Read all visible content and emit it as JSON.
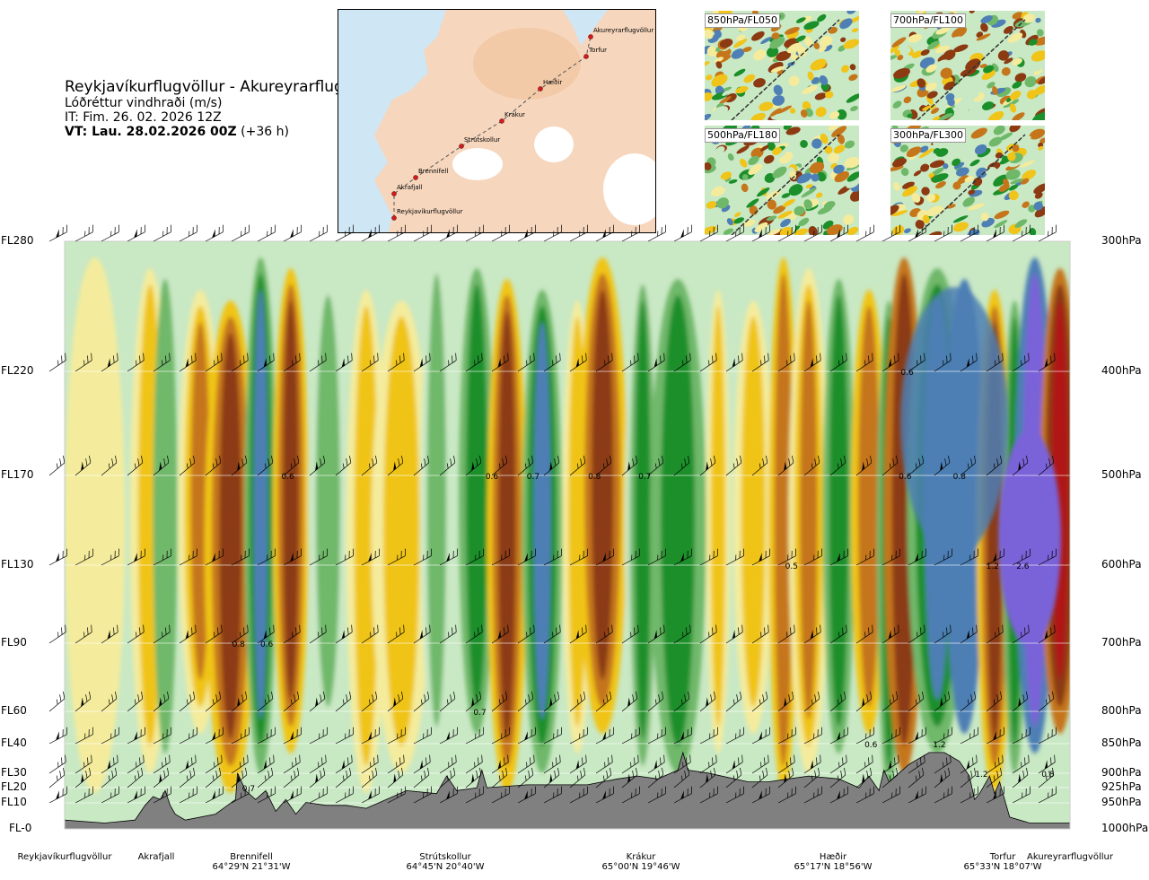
{
  "header": {
    "route_title": "Reykjavíkurflugvöllur - Akureyrarflugvöllur",
    "variable": "Lóðréttur vindhraði (m/s)",
    "issue_time": "IT: Fim. 26. 02. 2026 12Z",
    "valid_prefix": "VT: Lau. 28.02.2026 00Z",
    "valid_suffix": "(+36 h)"
  },
  "route_map": {
    "waypoints": [
      "Akureyrarflugvöllur",
      "Torfur",
      "Hæðir",
      "Krákur",
      "Strútskollur",
      "Brennifell",
      "Akrafjall",
      "Reykjavíkurflugvöllur"
    ],
    "route_color": "#555555",
    "marker_color": "#d7191c"
  },
  "level_maps": [
    {
      "label": "850hPa/FL050"
    },
    {
      "label": "700hPa/FL100"
    },
    {
      "label": "500hPa/FL180"
    },
    {
      "label": "300hPa/FL300"
    }
  ],
  "chart_data": {
    "type": "heatmap",
    "title": "Reykjavíkurflugvöllur - Akureyrarflugvöllur",
    "variable": "Lóðréttur vindhraði (m/s)",
    "x_axis": {
      "labels": [
        {
          "name": "Reykjavíkurflugvöllur",
          "coord": "",
          "pos": 0.0
        },
        {
          "name": "Akrafjall",
          "coord": "",
          "pos": 0.093
        },
        {
          "name": "Brennifell",
          "coord": "64°29'N 21°31'W",
          "pos": 0.186
        },
        {
          "name": "Strútskollur",
          "coord": "64°45'N 20°40'W",
          "pos": 0.378
        },
        {
          "name": "Krákur",
          "coord": "65°00'N 19°46'W",
          "pos": 0.57
        },
        {
          "name": "Hæðir",
          "coord": "65°17'N 18°56'W",
          "pos": 0.76
        },
        {
          "name": "Torfur",
          "coord": "65°33'N 18°07'W",
          "pos": 0.935
        },
        {
          "name": "Akureyrarflugvöllur",
          "coord": "",
          "pos": 1.0
        }
      ]
    },
    "y_axis": {
      "left_labels": [
        "FL280",
        "FL220",
        "FL170",
        "FL130",
        "FL90",
        "FL60",
        "FL40",
        "FL30",
        "FL20",
        "FL10",
        "FL-0"
      ],
      "right_labels": [
        "300hPa",
        "400hPa",
        "500hPa",
        "600hPa",
        "700hPa",
        "800hPa",
        "850hPa",
        "900hPa",
        "925hPa",
        "950hPa",
        "1000hPa"
      ],
      "pressure_levels_hpa": [
        300,
        400,
        500,
        600,
        700,
        800,
        850,
        900,
        925,
        950,
        1000
      ],
      "range_hpa": [
        1000,
        300
      ]
    },
    "value_annotations": [
      {
        "text": "0.6",
        "pos": 0.222,
        "hpa": 500
      },
      {
        "text": "0.8",
        "pos": 0.173,
        "hpa": 700
      },
      {
        "text": "0.6",
        "pos": 0.201,
        "hpa": 700
      },
      {
        "text": "0.7",
        "pos": 0.183,
        "hpa": 925
      },
      {
        "text": "0.6",
        "pos": 0.425,
        "hpa": 500
      },
      {
        "text": "0.7",
        "pos": 0.466,
        "hpa": 500
      },
      {
        "text": "0.8",
        "pos": 0.527,
        "hpa": 500
      },
      {
        "text": "0.7",
        "pos": 0.577,
        "hpa": 500
      },
      {
        "text": "0.7",
        "pos": 0.413,
        "hpa": 800
      },
      {
        "text": "0.5",
        "pos": 0.723,
        "hpa": 600
      },
      {
        "text": "0.6",
        "pos": 0.802,
        "hpa": 850
      },
      {
        "text": "0.6",
        "pos": 0.836,
        "hpa": 500
      },
      {
        "text": "0.6",
        "pos": 0.838,
        "hpa": 400
      },
      {
        "text": "0.8",
        "pos": 0.89,
        "hpa": 500
      },
      {
        "text": "1.2",
        "pos": 0.923,
        "hpa": 600
      },
      {
        "text": "2.6",
        "pos": 0.953,
        "hpa": 600
      },
      {
        "text": "1.2",
        "pos": 0.87,
        "hpa": 850
      },
      {
        "text": "1.2",
        "pos": 0.912,
        "hpa": 900
      },
      {
        "text": "0.8",
        "pos": 0.978,
        "hpa": 900
      }
    ],
    "colors": {
      "strong_down": "#8b3a12",
      "down": "#c5761a",
      "weak_down": "#f0c419",
      "slight_down": "#f4ec9c",
      "neutral": "#ffffff",
      "slight_up": "#c9e8c4",
      "weak_up": "#6fb86a",
      "up": "#1a8f2a",
      "strong_up": "#4e7fb5",
      "very_strong_up": "#7a62d8",
      "extreme": "#b01818",
      "terrain": "#808080"
    }
  }
}
